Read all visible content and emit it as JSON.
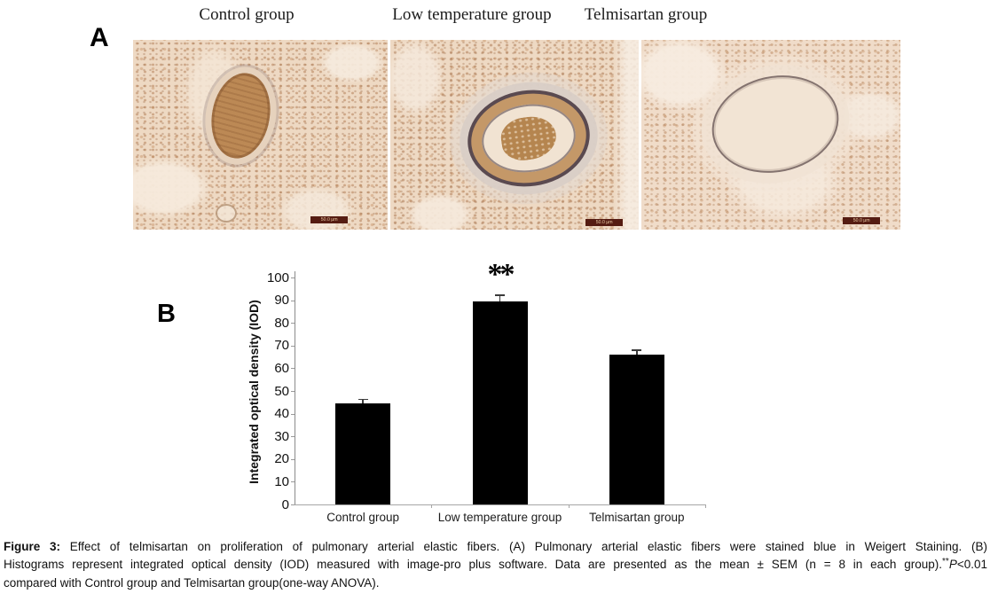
{
  "figure": {
    "panel_a": {
      "label": "A",
      "groups": [
        {
          "title": "Control group",
          "scale_bar": "50.0 µm"
        },
        {
          "title": "Low temperature group",
          "scale_bar": "50.0 µm"
        },
        {
          "title": "Telmisartan group",
          "scale_bar": "50.0 µm"
        }
      ]
    },
    "panel_b": {
      "label": "B"
    }
  },
  "chart_data": {
    "type": "bar",
    "categories": [
      "Control group",
      "Low temperature group",
      "Telmisartan group"
    ],
    "values": [
      44.5,
      89.5,
      66
    ],
    "errors": [
      2,
      3,
      2.2
    ],
    "title": "",
    "xlabel": "",
    "ylabel": "Integrated optical density (IOD)",
    "ylim": [
      0,
      100
    ],
    "ytick_step": 10,
    "grid": false,
    "legend": false,
    "bar_color": "#000000",
    "annotations": [
      {
        "category_index": 1,
        "text": "**"
      }
    ]
  },
  "caption": {
    "lines": [
      {
        "segments": [
          {
            "text": "Figure 3:",
            "bold": true
          },
          {
            "text": " Effect of telmisartan on proliferation of pulmonary arterial elastic fibers. (A) Pulmonary arterial elastic fibers were stained blue in Weigert Staining. (B)"
          }
        ]
      },
      {
        "segments": [
          {
            "text": "Histograms represent integrated optical density (IOD) measured with image-pro plus software. Data are presented as the mean ± SEM (n = 8 in each group)."
          },
          {
            "text": "**",
            "sup": true
          },
          {
            "text": "P",
            "italic": true
          },
          {
            "text": "<0.01"
          }
        ]
      },
      {
        "segments": [
          {
            "text": "compared with Control group and Telmisartan group(one-way ANOVA)."
          }
        ]
      }
    ]
  }
}
